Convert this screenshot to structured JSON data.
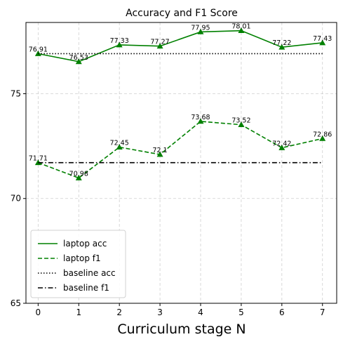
{
  "chart_data": {
    "type": "line",
    "title": "Accuracy and F1 Score",
    "xlabel": "Curriculum stage N",
    "ylabel": "",
    "x": [
      0,
      1,
      2,
      3,
      4,
      5,
      6,
      7
    ],
    "xlim": [
      -0.3,
      7.35
    ],
    "ylim": [
      65,
      78.4
    ],
    "yticks": [
      65,
      70,
      75
    ],
    "grid": true,
    "legend_position": "lower-left",
    "series": [
      {
        "name": "laptop acc",
        "values": [
          76.91,
          76.53,
          77.33,
          77.27,
          77.95,
          78.01,
          77.22,
          77.43
        ],
        "value_labels": [
          "76.91",
          "76.53",
          "77.33",
          "77.27",
          "77.95",
          "78.01",
          "77.22",
          "77.43"
        ],
        "color": "#008000",
        "style": "solid",
        "marker": "triangle"
      },
      {
        "name": "laptop f1",
        "values": [
          71.71,
          70.98,
          72.45,
          72.1,
          73.68,
          73.52,
          72.42,
          72.86
        ],
        "value_labels": [
          "71.71",
          "70.98",
          "72.45",
          "72.1",
          "73.68",
          "73.52",
          "72.42",
          "72.86"
        ],
        "color": "#008000",
        "style": "dashed",
        "marker": "triangle"
      },
      {
        "name": "baseline acc",
        "values": [
          76.91,
          76.91,
          76.91,
          76.91,
          76.91,
          76.91,
          76.91,
          76.91
        ],
        "color": "#000000",
        "style": "dotted"
      },
      {
        "name": "baseline f1",
        "values": [
          71.71,
          71.71,
          71.71,
          71.71,
          71.71,
          71.71,
          71.71,
          71.71
        ],
        "color": "#000000",
        "style": "dashdot"
      }
    ]
  }
}
